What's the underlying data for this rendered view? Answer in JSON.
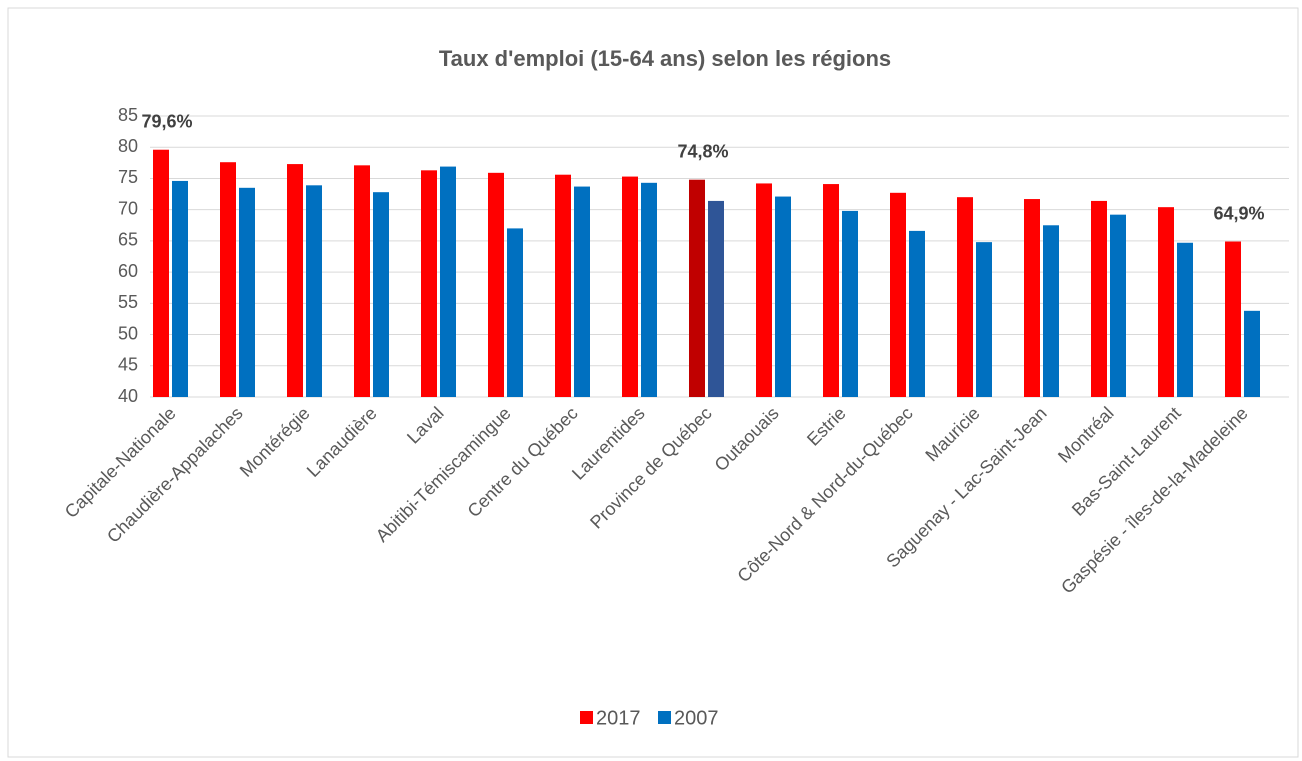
{
  "chart_data": {
    "type": "bar",
    "title": "Taux d'emploi (15-64 ans) selon les régions",
    "categories": [
      "Capitale-Nationale",
      "Chaudière-Appalaches",
      "Montérégie",
      "Lanaudière",
      "Laval",
      "Abitibi-Témiscamingue",
      "Centre du Québec",
      "Laurentides",
      "Province de Québec",
      "Outaouais",
      "Estrie",
      "Côte-Nord & Nord-du-Québec",
      "Mauricie",
      "Saguenay - Lac-Saint-Jean",
      "Montréal",
      "Bas-Saint-Laurent",
      "Gaspésie - îles-de-la-Madeleine"
    ],
    "series": [
      {
        "name": "2017",
        "color": "#ff0000",
        "colors": [
          "#ff0000",
          "#ff0000",
          "#ff0000",
          "#ff0000",
          "#ff0000",
          "#ff0000",
          "#ff0000",
          "#ff0000",
          "#c00000",
          "#ff0000",
          "#ff0000",
          "#ff0000",
          "#ff0000",
          "#ff0000",
          "#ff0000",
          "#ff0000",
          "#ff0000"
        ],
        "values": [
          79.6,
          77.6,
          77.3,
          77.1,
          76.3,
          75.9,
          75.6,
          75.3,
          74.8,
          74.2,
          74.1,
          72.7,
          72.0,
          71.7,
          71.4,
          70.4,
          64.9
        ],
        "value_labels": [
          "79,6%",
          null,
          null,
          null,
          null,
          null,
          null,
          null,
          "74,8%",
          null,
          null,
          null,
          null,
          null,
          null,
          null,
          "64,9%"
        ]
      },
      {
        "name": "2007",
        "color": "#0070c0",
        "colors": [
          "#0070c0",
          "#0070c0",
          "#0070c0",
          "#0070c0",
          "#0070c0",
          "#0070c0",
          "#0070c0",
          "#0070c0",
          "#2f5597",
          "#0070c0",
          "#0070c0",
          "#0070c0",
          "#0070c0",
          "#0070c0",
          "#0070c0",
          "#0070c0",
          "#0070c0"
        ],
        "values": [
          74.6,
          73.5,
          73.9,
          72.8,
          76.9,
          67.0,
          73.7,
          74.3,
          71.4,
          72.1,
          69.8,
          66.6,
          64.8,
          67.5,
          69.2,
          64.7,
          53.8
        ]
      }
    ],
    "ylim": [
      40,
      85
    ],
    "yticks": [
      40,
      45,
      50,
      55,
      60,
      65,
      70,
      75,
      80,
      85
    ],
    "grid": true,
    "legend": "bottom"
  }
}
